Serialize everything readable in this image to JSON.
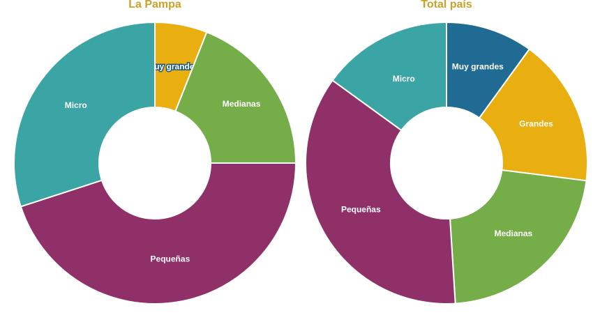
{
  "chart_data": [
    {
      "type": "pie",
      "title": "La Pampa",
      "slices": [
        {
          "label": "Muy grandes",
          "value": 6,
          "color": "#e9ae10"
        },
        {
          "label": "Medianas",
          "value": 19,
          "color": "#75ad48"
        },
        {
          "label": "Pequeñas",
          "value": 45,
          "color": "#8f3069"
        },
        {
          "label": "Micro",
          "value": 30,
          "color": "#3aa5a4"
        }
      ]
    },
    {
      "type": "pie",
      "title": "Total país",
      "slices": [
        {
          "label": "Muy grandes",
          "value": 10,
          "color": "#1f6b94"
        },
        {
          "label": "Grandes",
          "value": 17,
          "color": "#e9ae10"
        },
        {
          "label": "Medianas",
          "value": 22,
          "color": "#75ad48"
        },
        {
          "label": "Pequeñas",
          "value": 36,
          "color": "#8f3069"
        },
        {
          "label": "Micro",
          "value": 15,
          "color": "#3aa5a4"
        }
      ]
    }
  ]
}
